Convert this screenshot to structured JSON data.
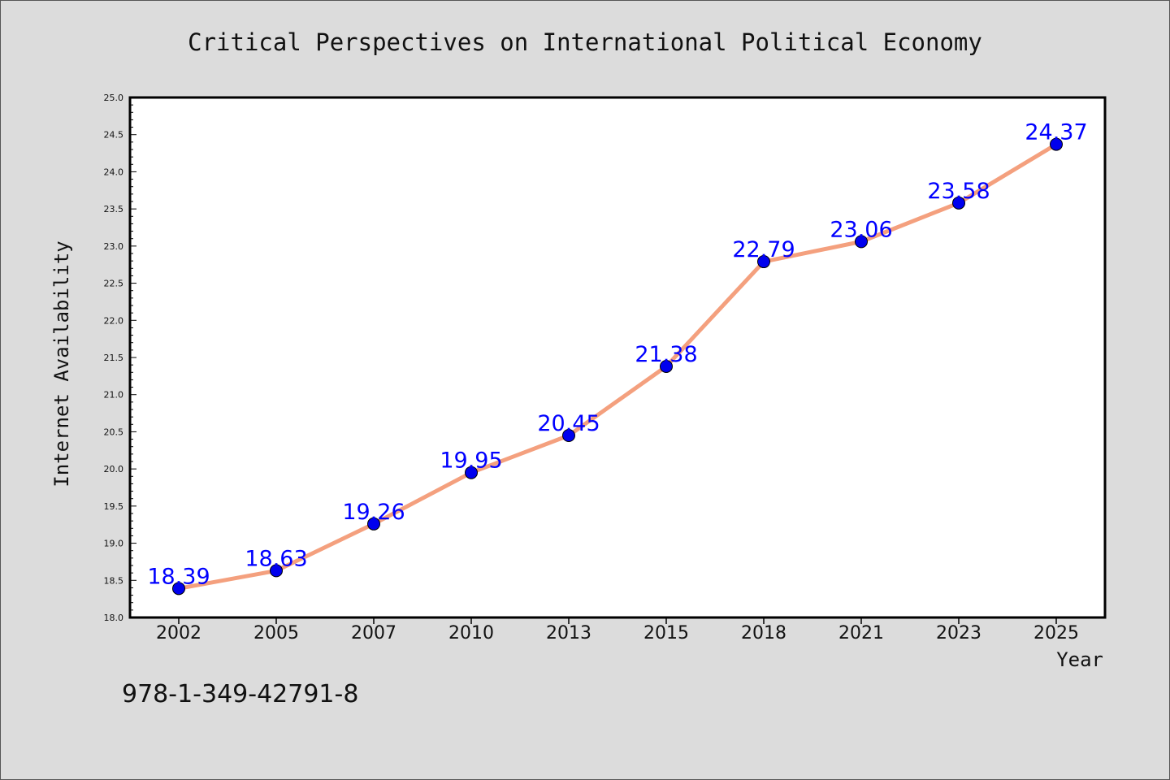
{
  "footer_text": "978-1-349-42791-8",
  "colors": {
    "background": "#dcdcdc",
    "plot_background": "#ffffff",
    "line": "#f4a07e",
    "marker": "#0000ee",
    "label": "#0000ff",
    "axis": "#000000"
  },
  "chart_data": {
    "type": "line",
    "title": "Critical Perspectives on International Political Economy",
    "xlabel": "Year",
    "ylabel": "Internet Availability",
    "categories": [
      "2002",
      "2005",
      "2007",
      "2010",
      "2013",
      "2015",
      "2018",
      "2021",
      "2023",
      "2025"
    ],
    "series": [
      {
        "values": [
          18.39,
          18.63,
          19.26,
          19.95,
          20.45,
          21.38,
          22.79,
          23.06,
          23.58,
          24.37
        ]
      }
    ],
    "data_labels": [
      "18.39",
      "18.63",
      "19.26",
      "19.95",
      "20.45",
      "21.38",
      "22.79",
      "23.06",
      "23.58",
      "24.37"
    ],
    "ylim": [
      18.0,
      25.0
    ],
    "yticks": [
      "18.0",
      "18.5",
      "19.0",
      "19.5",
      "20.0",
      "20.5",
      "21.0",
      "21.5",
      "22.0",
      "22.5",
      "23.0",
      "23.5",
      "24.0",
      "24.5",
      "25.0"
    ],
    "grid": false,
    "legend": "none"
  }
}
